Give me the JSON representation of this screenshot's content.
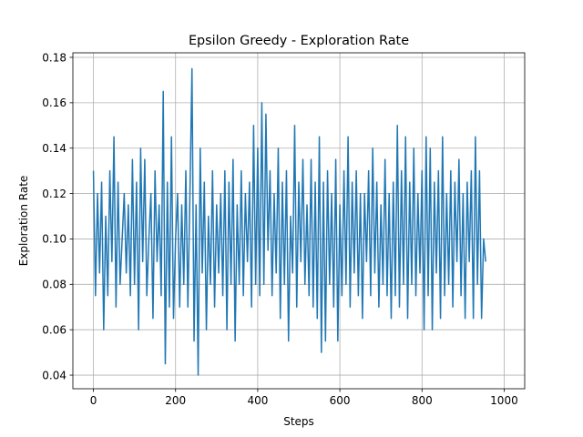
{
  "chart_data": {
    "type": "line",
    "title": "Epsilon Greedy - Exploration Rate",
    "xlabel": "Steps",
    "ylabel": "Exploration Rate",
    "xlim": [
      -50,
      1050
    ],
    "ylim": [
      0.034,
      0.182
    ],
    "xticks": [
      0,
      200,
      400,
      600,
      800,
      1000
    ],
    "yticks": [
      0.04,
      0.06,
      0.08,
      0.1,
      0.12,
      0.14,
      0.16,
      0.18
    ],
    "ytick_labels": [
      "0.04",
      "0.06",
      "0.08",
      "0.10",
      "0.12",
      "0.14",
      "0.16",
      "0.18"
    ],
    "grid": true,
    "series_color": "#1f77b4",
    "series": [
      {
        "name": "",
        "x_start": 0,
        "x_step": 5,
        "values": [
          0.13,
          0.075,
          0.12,
          0.085,
          0.125,
          0.06,
          0.11,
          0.075,
          0.13,
          0.09,
          0.145,
          0.07,
          0.125,
          0.08,
          0.1,
          0.12,
          0.085,
          0.115,
          0.075,
          0.135,
          0.08,
          0.125,
          0.06,
          0.14,
          0.09,
          0.135,
          0.075,
          0.1,
          0.12,
          0.065,
          0.13,
          0.09,
          0.115,
          0.075,
          0.165,
          0.045,
          0.125,
          0.07,
          0.145,
          0.065,
          0.1,
          0.12,
          0.07,
          0.115,
          0.08,
          0.13,
          0.07,
          0.12,
          0.175,
          0.055,
          0.115,
          0.04,
          0.14,
          0.085,
          0.125,
          0.06,
          0.11,
          0.08,
          0.13,
          0.07,
          0.115,
          0.085,
          0.12,
          0.075,
          0.13,
          0.06,
          0.125,
          0.08,
          0.135,
          0.055,
          0.115,
          0.08,
          0.13,
          0.075,
          0.12,
          0.09,
          0.125,
          0.07,
          0.15,
          0.08,
          0.14,
          0.075,
          0.16,
          0.08,
          0.155,
          0.095,
          0.13,
          0.075,
          0.12,
          0.085,
          0.14,
          0.065,
          0.125,
          0.08,
          0.13,
          0.055,
          0.11,
          0.085,
          0.15,
          0.07,
          0.125,
          0.09,
          0.135,
          0.08,
          0.115,
          0.075,
          0.135,
          0.07,
          0.125,
          0.065,
          0.145,
          0.05,
          0.125,
          0.055,
          0.13,
          0.08,
          0.12,
          0.07,
          0.135,
          0.055,
          0.115,
          0.075,
          0.13,
          0.08,
          0.145,
          0.07,
          0.125,
          0.085,
          0.13,
          0.075,
          0.12,
          0.065,
          0.12,
          0.09,
          0.13,
          0.075,
          0.14,
          0.085,
          0.125,
          0.07,
          0.115,
          0.08,
          0.135,
          0.075,
          0.12,
          0.065,
          0.125,
          0.075,
          0.15,
          0.07,
          0.13,
          0.08,
          0.145,
          0.065,
          0.125,
          0.08,
          0.14,
          0.075,
          0.12,
          0.085,
          0.13,
          0.06,
          0.145,
          0.075,
          0.14,
          0.06,
          0.125,
          0.085,
          0.13,
          0.065,
          0.145,
          0.075,
          0.12,
          0.08,
          0.13,
          0.07,
          0.125,
          0.09,
          0.135,
          0.075,
          0.12,
          0.065,
          0.125,
          0.09,
          0.13,
          0.065,
          0.145,
          0.08,
          0.13,
          0.065,
          0.1,
          0.09
        ]
      }
    ]
  }
}
